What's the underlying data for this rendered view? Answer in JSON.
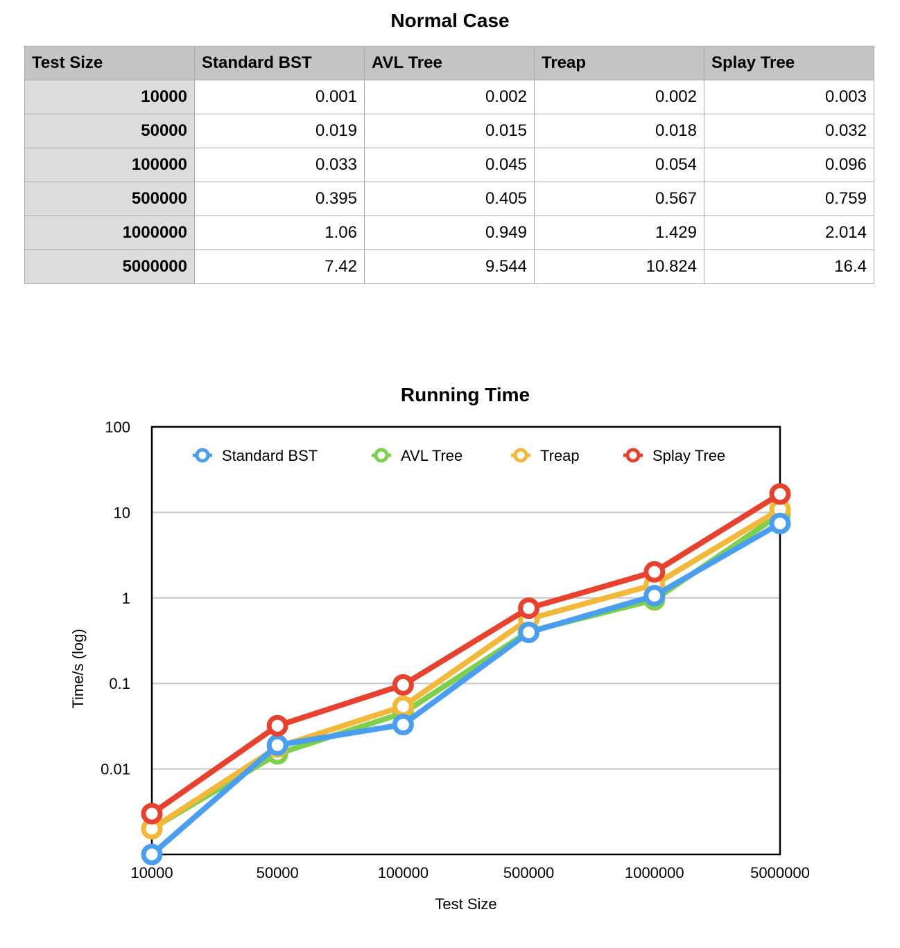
{
  "table": {
    "title": "Normal Case",
    "headers": [
      "Test Size",
      "Standard BST",
      "AVL Tree",
      "Treap",
      "Splay Tree"
    ],
    "rows": [
      [
        "10000",
        "0.001",
        "0.002",
        "0.002",
        "0.003"
      ],
      [
        "50000",
        "0.019",
        "0.015",
        "0.018",
        "0.032"
      ],
      [
        "100000",
        "0.033",
        "0.045",
        "0.054",
        "0.096"
      ],
      [
        "500000",
        "0.395",
        "0.405",
        "0.567",
        "0.759"
      ],
      [
        "1000000",
        "1.06",
        "0.949",
        "1.429",
        "2.014"
      ],
      [
        "5000000",
        "7.42",
        "9.544",
        "10.824",
        "16.4"
      ]
    ]
  },
  "chart_data": {
    "type": "line",
    "title": "Running Time",
    "xlabel": "Test Size",
    "ylabel": "Time/s (log)",
    "yscale": "log",
    "ylim": [
      0.001,
      100
    ],
    "yticks": [
      "100",
      "10",
      "1",
      "0.1",
      "0.01"
    ],
    "ytick_values": [
      100,
      10,
      1,
      0.1,
      0.01
    ],
    "categories": [
      "10000",
      "50000",
      "100000",
      "500000",
      "1000000",
      "5000000"
    ],
    "grid": true,
    "legend_position": "top",
    "series": [
      {
        "name": "Standard BST",
        "color": "#4a9ef0",
        "values": [
          0.001,
          0.019,
          0.033,
          0.395,
          1.06,
          7.42
        ]
      },
      {
        "name": "AVL Tree",
        "color": "#7ed04b",
        "values": [
          0.002,
          0.015,
          0.045,
          0.405,
          0.949,
          9.544
        ]
      },
      {
        "name": "Treap",
        "color": "#f2b83a",
        "values": [
          0.002,
          0.018,
          0.054,
          0.567,
          1.429,
          10.824
        ]
      },
      {
        "name": "Splay Tree",
        "color": "#e8412e",
        "values": [
          0.003,
          0.032,
          0.096,
          0.759,
          2.014,
          16.4
        ]
      }
    ]
  }
}
